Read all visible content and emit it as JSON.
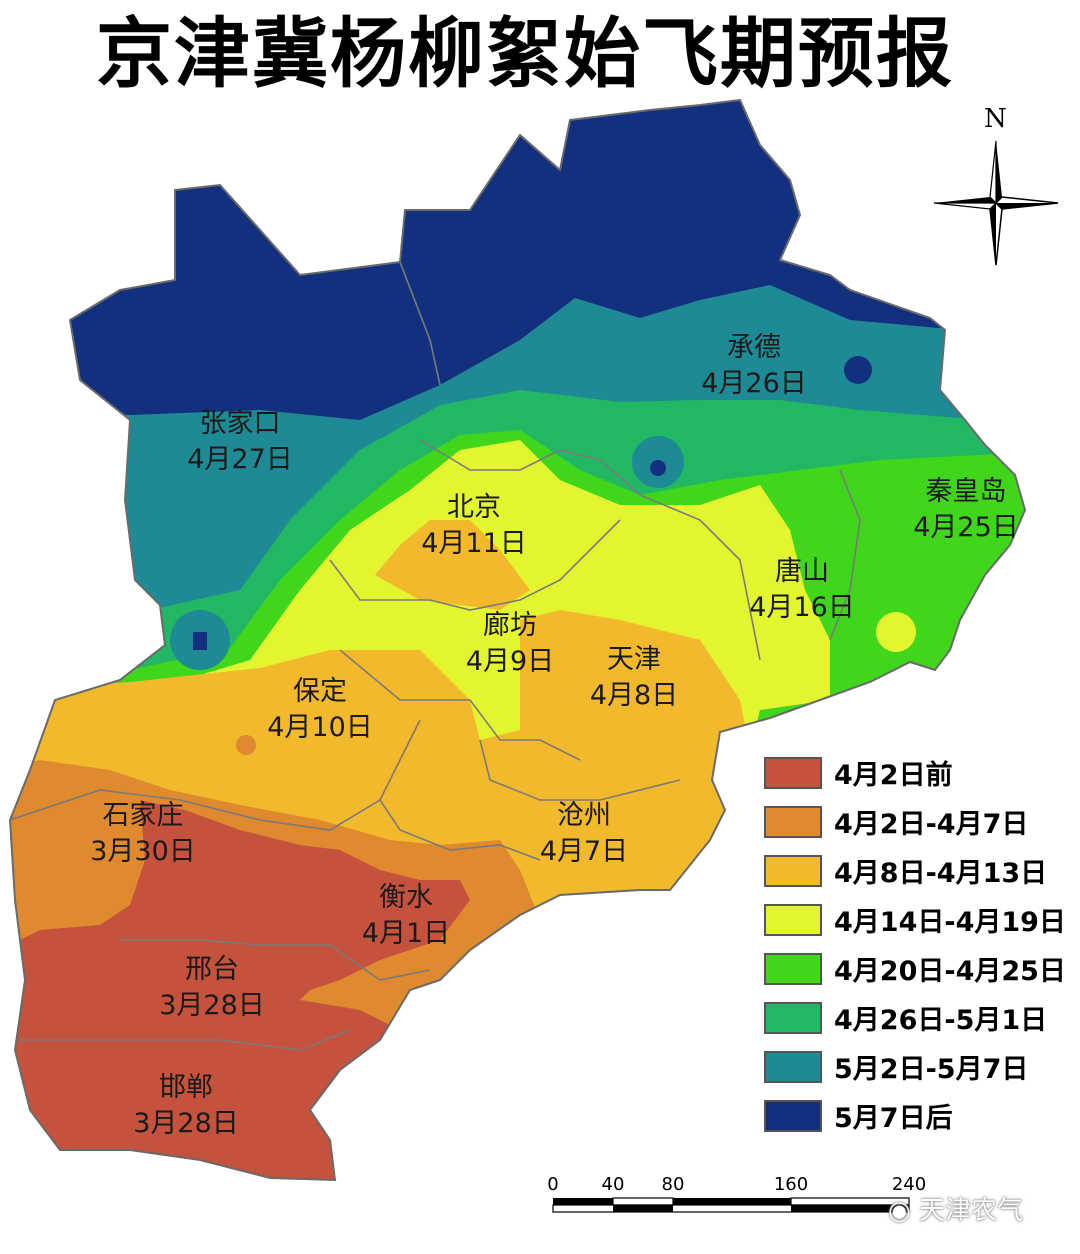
{
  "title": "京津冀杨柳絮始飞期预报",
  "north_label": "N",
  "cities": [
    {
      "name": "张家口",
      "date": "4月27日"
    },
    {
      "name": "承德",
      "date": "4月26日"
    },
    {
      "name": "秦皇岛",
      "date": "4月25日"
    },
    {
      "name": "北京",
      "date": "4月11日"
    },
    {
      "name": "唐山",
      "date": "4月16日"
    },
    {
      "name": "廊坊",
      "date": "4月9日"
    },
    {
      "name": "天津",
      "date": "4月8日"
    },
    {
      "name": "保定",
      "date": "4月10日"
    },
    {
      "name": "沧州",
      "date": "4月7日"
    },
    {
      "name": "石家庄",
      "date": "3月30日"
    },
    {
      "name": "衡水",
      "date": "4月1日"
    },
    {
      "name": "邢台",
      "date": "3月28日"
    },
    {
      "name": "邯郸",
      "date": "3月28日"
    }
  ],
  "legend": [
    {
      "label": "4月2日前",
      "color": "#c4523d"
    },
    {
      "label": "4月2日-4月7日",
      "color": "#df8a2e"
    },
    {
      "label": "4月8日-4月13日",
      "color": "#f2b92c"
    },
    {
      "label": "4月14日-4月19日",
      "color": "#e3f52e"
    },
    {
      "label": "4月20日-4月25日",
      "color": "#3fd61c"
    },
    {
      "label": "4月26日-5月1日",
      "color": "#22b863"
    },
    {
      "label": "5月2日-5月7日",
      "color": "#1e8a96"
    },
    {
      "label": "5月7日后",
      "color": "#12307e"
    }
  ],
  "scale_bar": {
    "ticks": [
      "0",
      "40",
      "80",
      "160",
      "240"
    ]
  },
  "watermark": "天津农气"
}
